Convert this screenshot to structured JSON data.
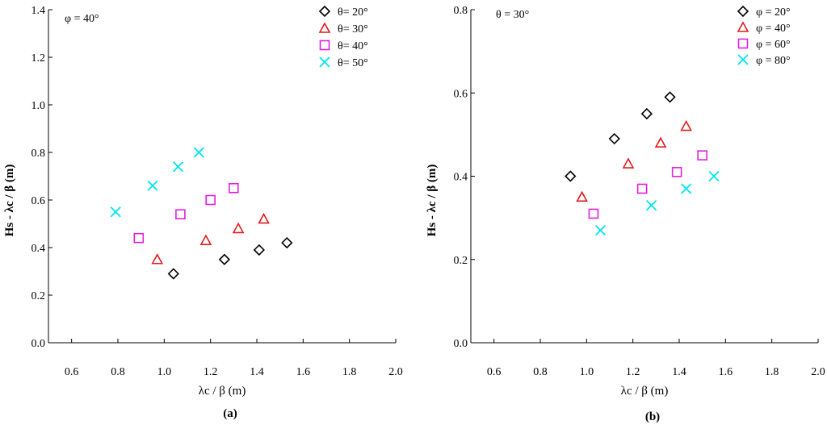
{
  "chart_data": [
    {
      "type": "scatter",
      "panel_label": "(a)",
      "annotation": "φ = 40°",
      "xlabel": "λc / β (m)",
      "ylabel": "Hs - λc / β (m)",
      "xlim": [
        0.5,
        2.0
      ],
      "ylim": [
        0.0,
        1.4
      ],
      "xticks": [
        "0.6",
        "0.8",
        "1.0",
        "1.2",
        "1.4",
        "1.6",
        "1.8",
        "2.0"
      ],
      "yticks": [
        "0.0",
        "0.2",
        "0.4",
        "0.6",
        "0.8",
        "1.0",
        "1.2",
        "1.4"
      ],
      "legend_position": "top-right",
      "grid": false,
      "series": [
        {
          "name": "θ= 20°",
          "marker": "diamond",
          "color": "#000000",
          "x": [
            1.04,
            1.26,
            1.41,
            1.53
          ],
          "y": [
            0.29,
            0.35,
            0.39,
            0.42
          ]
        },
        {
          "name": "θ= 30°",
          "marker": "triangle",
          "color": "#e31a1c",
          "x": [
            0.97,
            1.18,
            1.32,
            1.43
          ],
          "y": [
            0.35,
            0.43,
            0.48,
            0.52
          ]
        },
        {
          "name": "θ= 40°",
          "marker": "square",
          "color": "#e020e0",
          "x": [
            0.89,
            1.07,
            1.2,
            1.3
          ],
          "y": [
            0.44,
            0.54,
            0.6,
            0.65
          ]
        },
        {
          "name": "θ= 50°",
          "marker": "cross",
          "color": "#00e5ee",
          "x": [
            0.79,
            0.95,
            1.06,
            1.15
          ],
          "y": [
            0.55,
            0.66,
            0.74,
            0.8
          ]
        }
      ]
    },
    {
      "type": "scatter",
      "panel_label": "(b)",
      "annotation": "θ = 30°",
      "xlabel": "λc / β (m)",
      "ylabel": "Hs - λc / β (m)",
      "xlim": [
        0.5,
        2.0
      ],
      "ylim": [
        0.0,
        0.8
      ],
      "xticks": [
        "0.6",
        "0.8",
        "1.0",
        "1.2",
        "1.4",
        "1.6",
        "1.8",
        "2.0"
      ],
      "yticks": [
        "0.0",
        "0.2",
        "0.4",
        "0.6",
        "0.8"
      ],
      "legend_position": "top-right",
      "grid": false,
      "series": [
        {
          "name": "φ = 20°",
          "marker": "diamond",
          "color": "#000000",
          "x": [
            0.93,
            1.12,
            1.26,
            1.36
          ],
          "y": [
            0.4,
            0.49,
            0.55,
            0.59
          ]
        },
        {
          "name": "φ = 40°",
          "marker": "triangle",
          "color": "#e31a1c",
          "x": [
            0.98,
            1.18,
            1.32,
            1.43
          ],
          "y": [
            0.35,
            0.43,
            0.48,
            0.52
          ]
        },
        {
          "name": "φ = 60°",
          "marker": "square",
          "color": "#e020e0",
          "x": [
            1.03,
            1.24,
            1.39,
            1.5
          ],
          "y": [
            0.31,
            0.37,
            0.41,
            0.45
          ]
        },
        {
          "name": "φ = 80°",
          "marker": "cross",
          "color": "#00e5ee",
          "x": [
            1.06,
            1.28,
            1.43,
            1.55
          ],
          "y": [
            0.27,
            0.33,
            0.37,
            0.4
          ]
        }
      ]
    }
  ]
}
